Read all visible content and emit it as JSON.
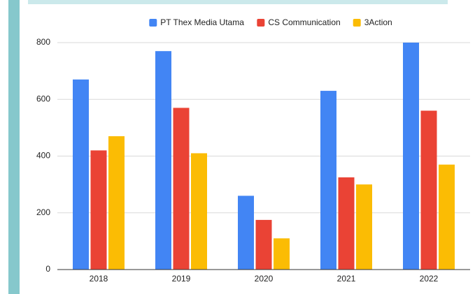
{
  "chart_data": {
    "type": "bar",
    "categories": [
      "2018",
      "2019",
      "2020",
      "2021",
      "2022"
    ],
    "series": [
      {
        "name": "PT Thex Media Utama",
        "color": "#4285f4",
        "values": [
          670,
          770,
          260,
          630,
          800
        ]
      },
      {
        "name": "CS Communication",
        "color": "#ea4335",
        "values": [
          420,
          570,
          175,
          325,
          560
        ]
      },
      {
        "name": "3Action",
        "color": "#fbbc04",
        "values": [
          470,
          410,
          110,
          300,
          370
        ]
      }
    ],
    "ylim": [
      0,
      800
    ],
    "yticks": [
      0,
      200,
      400,
      600,
      800
    ],
    "grid": true,
    "legend": "top"
  }
}
